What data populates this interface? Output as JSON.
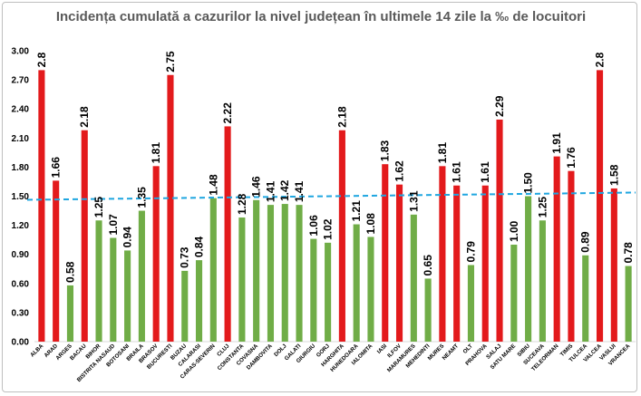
{
  "chart_data": {
    "type": "bar",
    "title": "Incidența cumulată a cazurilor la nivel județean în ultimele 14 zile la ‰ de locuitori",
    "xlabel": "",
    "ylabel": "",
    "ylim": [
      0,
      3.0
    ],
    "yticks": [
      "0.00",
      "0.30",
      "0.60",
      "0.90",
      "1.20",
      "1.50",
      "1.80",
      "2.10",
      "2.40",
      "2.70",
      "3.00"
    ],
    "threshold": 1.5,
    "colors": {
      "above": "#e31a1c",
      "below": "#70ad47",
      "threshold_line": "#1fa6e0"
    },
    "categories": [
      "ALBA",
      "ARAD",
      "ARGES",
      "BACAU",
      "BIHOR",
      "BISTRITA NASAUD",
      "BOTOSANI",
      "BRAILA",
      "BRASOV",
      "BUCURESTI",
      "BUZAU",
      "CALARASI",
      "CARAS-SEVERIN",
      "CLUJ",
      "CONSTANTA",
      "COVASNA",
      "DAMBOVITA",
      "DOLJ",
      "GALATI",
      "GIURGIU",
      "GORJ",
      "HARGHITA",
      "HUNEDOARA",
      "IALOMITA",
      "IASI",
      "ILFOV",
      "MARAMURES",
      "MEHEDINTI",
      "MURES",
      "NEAMT",
      "OLT",
      "PRAHOVA",
      "SALAJ",
      "SATU MARE",
      "SIBIU",
      "SUCEAVA",
      "TELEORMAN",
      "TIMIS",
      "TULCEA",
      "VALCEA",
      "VASLUI",
      "VRANCEA"
    ],
    "values": [
      2.8,
      1.66,
      0.58,
      2.18,
      1.25,
      1.07,
      0.94,
      1.35,
      1.81,
      2.75,
      0.73,
      0.84,
      1.48,
      2.22,
      1.28,
      1.46,
      1.41,
      1.42,
      1.41,
      1.06,
      1.02,
      2.18,
      1.21,
      1.08,
      1.83,
      1.62,
      1.31,
      0.65,
      1.81,
      1.61,
      0.79,
      1.61,
      2.29,
      1.0,
      1.5,
      1.25,
      1.91,
      1.76,
      0.89,
      2.8,
      1.58,
      0.78
    ],
    "labels": [
      "2.8",
      "1.66",
      "0.58",
      "2.18",
      "1.25",
      "1.07",
      "0.94",
      "1.35",
      "1.81",
      "2.75",
      "0.73",
      "0.84",
      "1.48",
      "2.22",
      "1.28",
      "1.46",
      "1.41",
      "1.42",
      "1.41",
      "1.06",
      "1.02",
      "2.18",
      "1.21",
      "1.08",
      "1.83",
      "1.62",
      "1.31",
      "0.65",
      "1.81",
      "1.61",
      "0.79",
      "1.61",
      "2.29",
      "1.00",
      "1.50",
      "1.25",
      "1.91",
      "1.76",
      "0.89",
      "2.8",
      "1.58",
      "0.78"
    ],
    "series_color": [
      "red",
      "red",
      "green",
      "red",
      "green",
      "green",
      "green",
      "green",
      "red",
      "red",
      "green",
      "green",
      "green",
      "red",
      "green",
      "green",
      "green",
      "green",
      "green",
      "green",
      "green",
      "red",
      "green",
      "green",
      "red",
      "red",
      "green",
      "green",
      "red",
      "red",
      "green",
      "red",
      "red",
      "green",
      "green",
      "green",
      "red",
      "red",
      "green",
      "red",
      "red",
      "green"
    ]
  }
}
